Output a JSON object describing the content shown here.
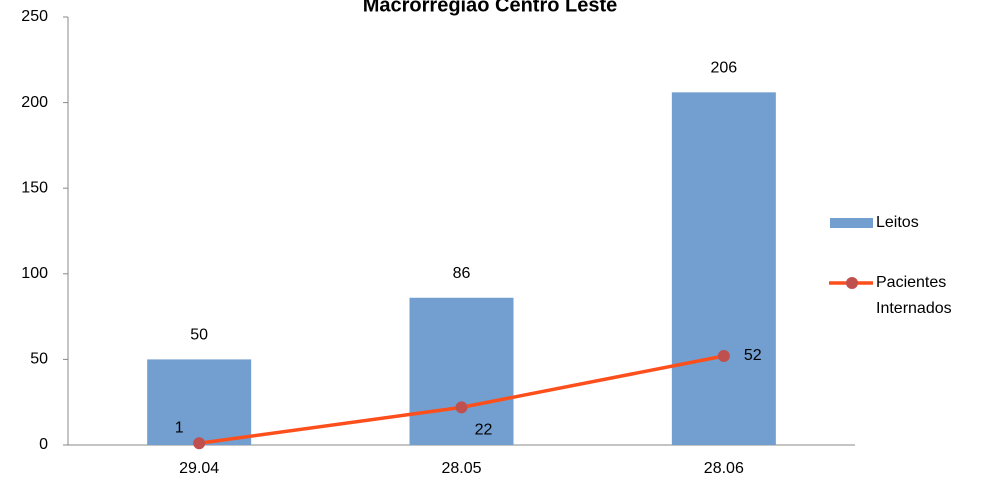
{
  "chart_data": {
    "type": "bar-line",
    "title": "Macrorregião Centro Leste",
    "categories": [
      "29.04",
      "28.05",
      "28.06"
    ],
    "series": [
      {
        "name": "Leitos",
        "type": "bar",
        "color": "#729fcf",
        "values": [
          50,
          86,
          206
        ]
      },
      {
        "name": "Pacientes Internados",
        "type": "line",
        "color": "#fc4f1c",
        "marker_color": "#c0504d",
        "values": [
          1,
          22,
          52
        ]
      }
    ],
    "ylim": [
      0,
      250
    ],
    "yticks": [
      0,
      50,
      100,
      150,
      200,
      250
    ],
    "legend": "right"
  }
}
